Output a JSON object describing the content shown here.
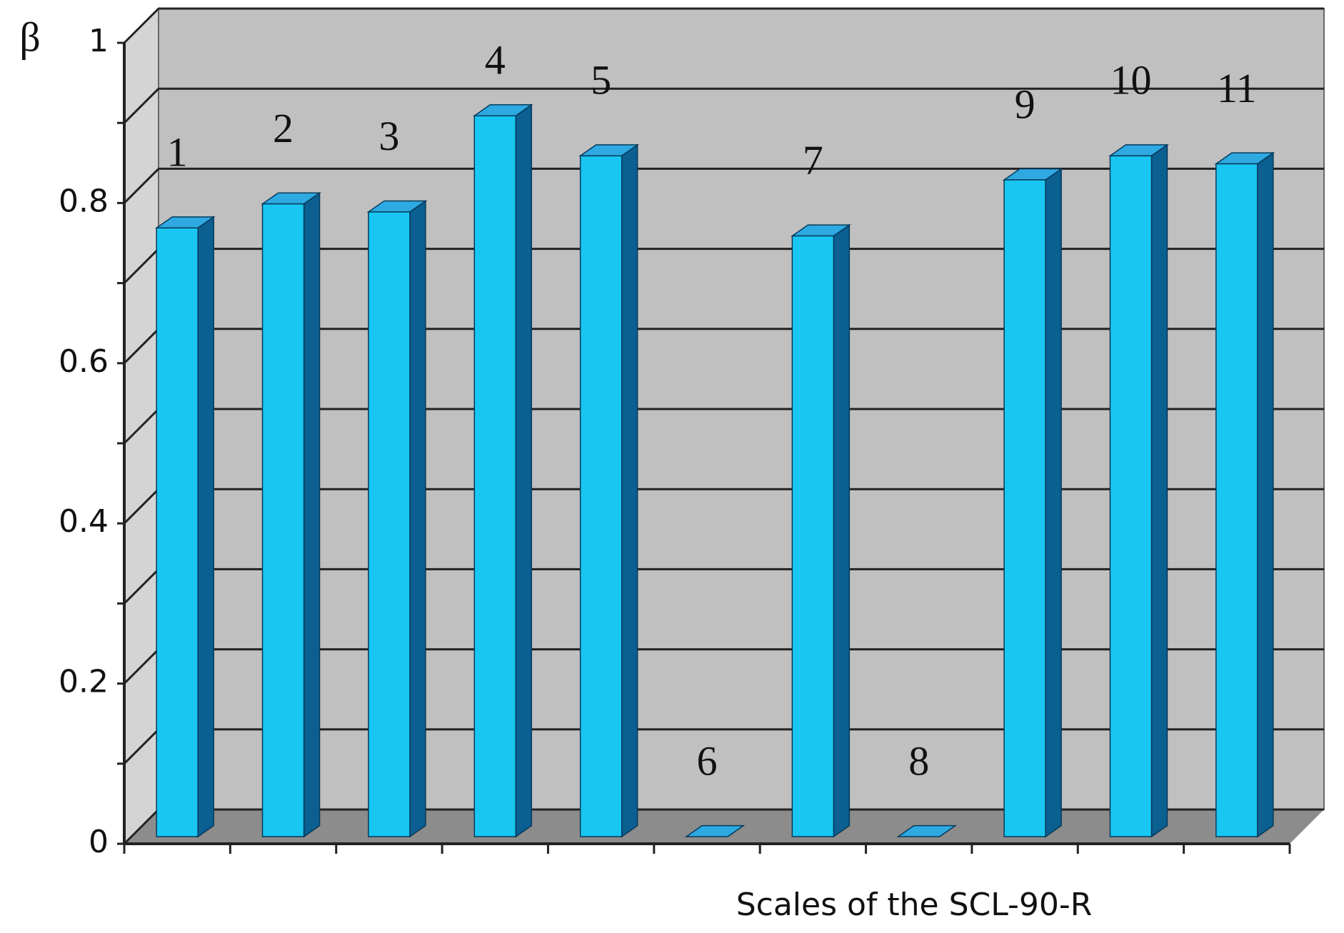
{
  "chart_data": {
    "type": "bar3d",
    "y_label": "β",
    "x_label": "Scales of the SCL-90-R",
    "categories": [
      "1",
      "2",
      "3",
      "4",
      "5",
      "6",
      "7",
      "8",
      "9",
      "10",
      "11"
    ],
    "values": [
      0.76,
      0.79,
      0.78,
      0.9,
      0.85,
      0,
      0.75,
      0,
      0.82,
      0.85,
      0.84
    ],
    "color": "#19c6f2",
    "side_color": "#0b5f91",
    "top_color": "#2ea9e2",
    "wall_color": "#c0c0c0",
    "floor_color": "#8c8c8c",
    "ylim": [
      0,
      1
    ],
    "yticks": [
      0,
      0.2,
      0.4,
      0.6,
      0.8,
      1
    ],
    "minor_yticks": [
      0.1,
      0.3,
      0.5,
      0.7,
      0.9
    ],
    "grid": true
  }
}
